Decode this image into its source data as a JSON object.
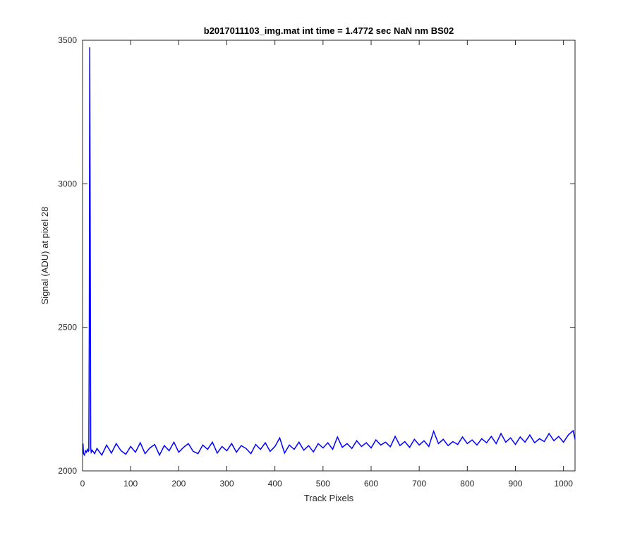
{
  "chart_data": {
    "type": "line",
    "title": "b2017011103_img.mat int time = 1.4772 sec  NaN nm BS02",
    "x_label": "Track Pixels",
    "y_label": "Signal (ADU) at pixel 28",
    "x": [
      1,
      2,
      4,
      6,
      8,
      10,
      12,
      13,
      14,
      15,
      16,
      17,
      18,
      20,
      25,
      30,
      40,
      50,
      60,
      70,
      80,
      90,
      100,
      110,
      120,
      130,
      140,
      150,
      160,
      170,
      180,
      190,
      200,
      210,
      220,
      230,
      240,
      250,
      260,
      270,
      280,
      290,
      300,
      310,
      320,
      330,
      340,
      350,
      360,
      370,
      380,
      390,
      400,
      410,
      420,
      430,
      440,
      450,
      460,
      470,
      480,
      490,
      500,
      510,
      520,
      530,
      540,
      550,
      560,
      570,
      580,
      590,
      600,
      610,
      620,
      630,
      640,
      650,
      660,
      670,
      680,
      690,
      700,
      710,
      720,
      730,
      740,
      750,
      760,
      770,
      780,
      790,
      800,
      810,
      820,
      830,
      840,
      850,
      860,
      870,
      880,
      890,
      900,
      910,
      920,
      930,
      940,
      950,
      960,
      970,
      980,
      990,
      1000,
      1010,
      1020,
      1024
    ],
    "series": [
      {
        "name": "signal",
        "color": "#0000ff",
        "values": [
          2095,
          2060,
          2055,
          2070,
          2065,
          2075,
          2068,
          2070,
          2500,
          3475,
          2800,
          2080,
          2065,
          2072,
          2060,
          2078,
          2055,
          2090,
          2062,
          2095,
          2070,
          2058,
          2085,
          2065,
          2098,
          2060,
          2080,
          2092,
          2055,
          2088,
          2070,
          2100,
          2065,
          2082,
          2095,
          2068,
          2060,
          2090,
          2075,
          2100,
          2062,
          2085,
          2070,
          2095,
          2065,
          2088,
          2078,
          2060,
          2092,
          2075,
          2098,
          2068,
          2085,
          2115,
          2062,
          2090,
          2075,
          2100,
          2072,
          2088,
          2066,
          2095,
          2080,
          2098,
          2075,
          2118,
          2082,
          2095,
          2078,
          2105,
          2085,
          2098,
          2080,
          2108,
          2090,
          2100,
          2084,
          2120,
          2088,
          2102,
          2082,
          2110,
          2090,
          2105,
          2085,
          2138,
          2095,
          2110,
          2088,
          2102,
          2092,
          2118,
          2095,
          2108,
          2090,
          2112,
          2098,
          2120,
          2095,
          2130,
          2100,
          2115,
          2092,
          2118,
          2100,
          2125,
          2098,
          2112,
          2102,
          2130,
          2105,
          2120,
          2100,
          2125,
          2140,
          2110
        ]
      }
    ],
    "xlim": [
      0,
      1024
    ],
    "ylim": [
      2000,
      3500
    ],
    "xticks": [
      0,
      100,
      200,
      300,
      400,
      500,
      600,
      700,
      800,
      900,
      1000
    ],
    "yticks": [
      2000,
      2500,
      3000,
      3500
    ]
  }
}
